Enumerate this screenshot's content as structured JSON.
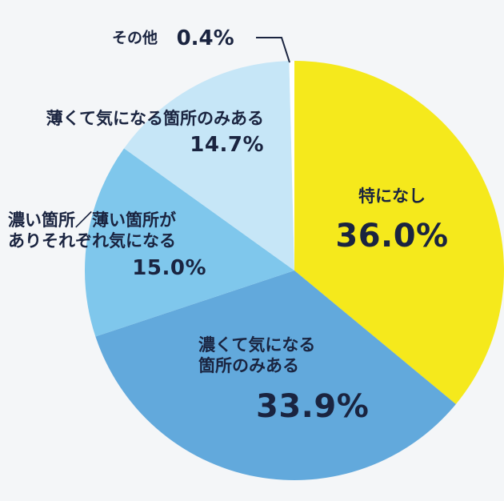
{
  "chart_data": {
    "type": "pie",
    "start_angle_deg": 0,
    "direction": "clockwise",
    "slices": [
      {
        "label": "特になし",
        "value": 36.0,
        "display": "36.0%",
        "color": "#f5e91c"
      },
      {
        "label": "濃くて気になる箇所のみある",
        "value": 33.9,
        "display": "33.9%",
        "color": "#62a9dc"
      },
      {
        "label": "濃い箇所／薄い箇所がありそれぞれ気になる",
        "value": 15.0,
        "display": "15.0%",
        "color": "#7fc7ec"
      },
      {
        "label": "薄くて気になる箇所のみある",
        "value": 14.7,
        "display": "14.7%",
        "color": "#c6e6f7"
      },
      {
        "label": "その他",
        "value": 0.4,
        "display": "0.4%",
        "color": "#ffffff"
      }
    ],
    "label_lines": {
      "none": [
        "特になし"
      ],
      "dark": [
        "濃くて気になる",
        "箇所のみある"
      ],
      "mixed": [
        "濃い箇所／薄い箇所が",
        "ありそれぞれ気になる"
      ],
      "light": [
        "薄くて気になる箇所のみある"
      ],
      "other": [
        "その他"
      ]
    }
  }
}
